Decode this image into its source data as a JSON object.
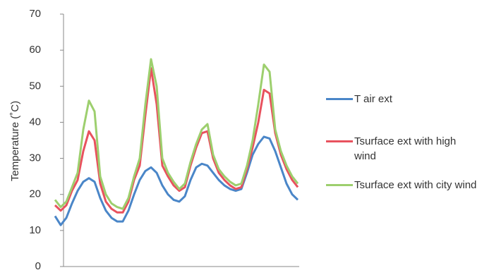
{
  "chart_data": {
    "type": "line",
    "y_label": "Temperature (˚C)",
    "ylim": [
      0,
      70
    ],
    "yticks": [
      0,
      10,
      20,
      30,
      40,
      50,
      60,
      70
    ],
    "grid": false,
    "legend": "right",
    "categories": [
      null,
      null,
      null,
      null,
      null,
      null,
      null,
      null,
      null,
      null,
      null,
      null,
      null,
      null,
      null,
      null,
      null,
      null,
      null,
      null,
      null,
      null,
      null,
      null,
      null,
      null,
      null,
      null,
      null,
      null,
      null,
      null,
      null,
      null,
      null,
      null,
      null,
      null,
      null,
      null,
      null,
      null,
      null,
      null
    ],
    "series": [
      {
        "name": "T air ext",
        "color": "#4a86c8",
        "values": [
          14,
          11.5,
          13.5,
          17.5,
          21,
          23.5,
          24.5,
          23.5,
          19,
          15.5,
          13.5,
          12.5,
          12.5,
          15.5,
          20,
          24,
          26.5,
          27.5,
          26,
          22.5,
          20,
          18.5,
          18,
          19.5,
          24,
          27.5,
          28.5,
          28,
          26,
          24,
          22.5,
          21.5,
          21,
          21.5,
          26,
          31,
          34,
          36,
          35.5,
          32,
          27.5,
          23,
          20,
          18.5
        ]
      },
      {
        "name": "Tsurface ext with high wind",
        "color": "#e8525e",
        "values": [
          17,
          15.5,
          17,
          21,
          24,
          32,
          37.5,
          35,
          23,
          18,
          16,
          15,
          15,
          18,
          24,
          28,
          42,
          55,
          45,
          28,
          25,
          22.5,
          21,
          22,
          28,
          33,
          37,
          37.5,
          30,
          26,
          24,
          22.5,
          21.5,
          22,
          27,
          33,
          40,
          49,
          48,
          37,
          31,
          27,
          24,
          22
        ]
      },
      {
        "name": "Tsurface ext with city wind",
        "color": "#9dcf6e",
        "values": [
          18.5,
          16.5,
          18,
          22,
          26,
          38,
          46,
          43,
          25,
          20,
          17.5,
          16.5,
          16,
          19,
          25,
          30,
          45,
          57.5,
          50,
          30,
          26,
          23.5,
          21.5,
          23,
          29,
          34,
          38,
          39.5,
          31,
          27,
          25,
          23.5,
          22.5,
          23,
          28,
          35,
          45,
          56,
          54,
          38,
          32,
          28,
          25,
          23
        ]
      }
    ]
  }
}
